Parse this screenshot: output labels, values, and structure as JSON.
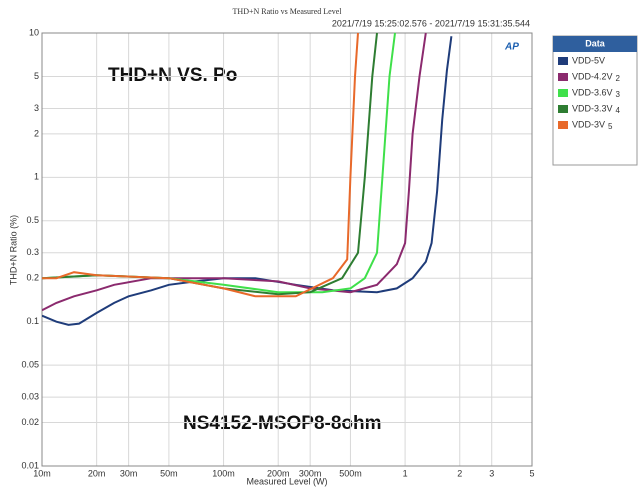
{
  "chart_data": {
    "type": "line",
    "title": "THD+N Ratio vs Measured Level",
    "subtitle": "2021/7/19 15:25:02.576 - 2021/7/19 15:31:35.544",
    "xlabel": "Measured Level (W)",
    "ylabel": "THD+N Ratio (%)",
    "annotations": [
      "THD+N VS. Po",
      "NS4152-MSOP8-8ohm"
    ],
    "logo": "AP",
    "legend_title": "Data",
    "legend": "outside-right",
    "xscale": "log",
    "yscale": "log",
    "grid": true,
    "xlim": [
      0.01,
      5
    ],
    "ylim": [
      0.01,
      10
    ],
    "xticks": [
      {
        "value": 0.01,
        "label": "10m"
      },
      {
        "value": 0.02,
        "label": "20m"
      },
      {
        "value": 0.03,
        "label": "30m"
      },
      {
        "value": 0.05,
        "label": "50m"
      },
      {
        "value": 0.1,
        "label": "100m"
      },
      {
        "value": 0.2,
        "label": "200m"
      },
      {
        "value": 0.3,
        "label": "300m"
      },
      {
        "value": 0.5,
        "label": "500m"
      },
      1,
      2,
      3,
      5
    ],
    "yticks": [
      0.01,
      0.02,
      0.03,
      0.05,
      0.1,
      0.2,
      0.3,
      0.5,
      1,
      2,
      3,
      5,
      10
    ],
    "series": [
      {
        "name": "VDD-5V",
        "color": "#1f3c7a",
        "x": [
          0.01,
          0.012,
          0.014,
          0.016,
          0.02,
          0.025,
          0.03,
          0.04,
          0.05,
          0.07,
          0.1,
          0.15,
          0.25,
          0.4,
          0.7,
          0.9,
          1.1,
          1.3,
          1.4,
          1.5,
          1.6,
          1.7,
          1.8
        ],
        "values": [
          0.11,
          0.1,
          0.095,
          0.097,
          0.115,
          0.135,
          0.15,
          0.165,
          0.18,
          0.19,
          0.2,
          0.2,
          0.18,
          0.165,
          0.16,
          0.17,
          0.2,
          0.26,
          0.35,
          0.8,
          2.5,
          5.5,
          9.5
        ]
      },
      {
        "name": "VDD-4.2V",
        "index": "2",
        "color": "#8b2a6e",
        "x": [
          0.01,
          0.012,
          0.015,
          0.02,
          0.025,
          0.04,
          0.07,
          0.1,
          0.2,
          0.3,
          0.5,
          0.7,
          0.9,
          1.0,
          1.05,
          1.1,
          1.2,
          1.3
        ],
        "values": [
          0.12,
          0.135,
          0.15,
          0.165,
          0.18,
          0.2,
          0.2,
          0.2,
          0.19,
          0.17,
          0.16,
          0.18,
          0.25,
          0.35,
          0.8,
          2,
          5,
          10
        ]
      },
      {
        "name": "VDD-3.6V",
        "index": "3",
        "color": "#3fe04a",
        "x": [
          0.01,
          0.02,
          0.05,
          0.1,
          0.2,
          0.35,
          0.5,
          0.6,
          0.7,
          0.75,
          0.82,
          0.88
        ],
        "values": [
          0.2,
          0.21,
          0.2,
          0.18,
          0.16,
          0.16,
          0.17,
          0.2,
          0.3,
          1,
          5,
          10
        ]
      },
      {
        "name": "VDD-3.3V",
        "index": "4",
        "color": "#2e7d32",
        "x": [
          0.01,
          0.02,
          0.05,
          0.1,
          0.2,
          0.3,
          0.45,
          0.55,
          0.6,
          0.66,
          0.7
        ],
        "values": [
          0.2,
          0.21,
          0.2,
          0.17,
          0.155,
          0.16,
          0.2,
          0.3,
          1,
          5,
          10
        ]
      },
      {
        "name": "VDD-3V",
        "index": "5",
        "color": "#e8692a",
        "x": [
          0.01,
          0.012,
          0.015,
          0.02,
          0.05,
          0.1,
          0.15,
          0.25,
          0.4,
          0.48,
          0.5,
          0.53,
          0.55
        ],
        "values": [
          0.2,
          0.2,
          0.22,
          0.21,
          0.2,
          0.17,
          0.15,
          0.15,
          0.2,
          0.27,
          1,
          5,
          10
        ]
      }
    ]
  }
}
